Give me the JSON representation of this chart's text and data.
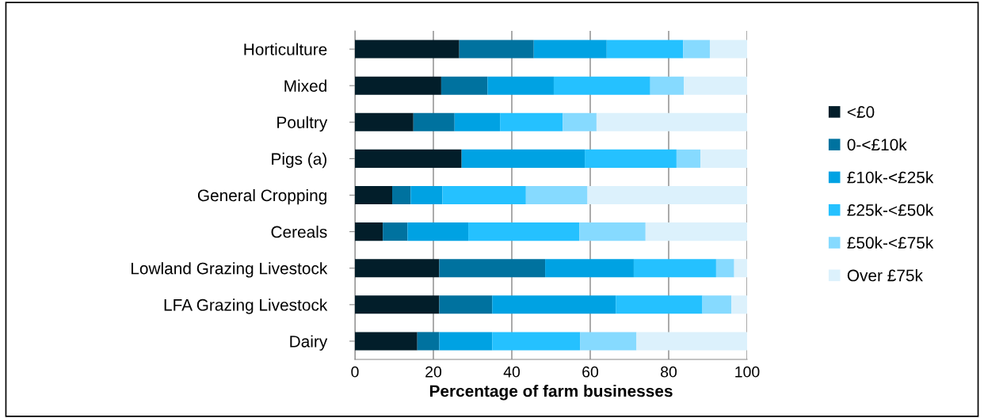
{
  "chart_data": {
    "type": "bar",
    "orientation": "horizontal",
    "stacked": true,
    "xlabel": "Percentage of farm businesses",
    "categories": [
      "Horticulture",
      "Mixed",
      "Poultry",
      "Pigs (a)",
      "General Cropping",
      "Cereals",
      "Lowland Grazing Livestock",
      "LFA Grazing Livestock",
      "Dairy"
    ],
    "series": [
      {
        "name": "<£0",
        "color": "#021e2a",
        "values": [
          26.6,
          22.0,
          14.9,
          27.2,
          9.5,
          7.1,
          21.5,
          21.5,
          15.9
        ]
      },
      {
        "name": "0-<£10k",
        "color": "#00729f",
        "values": [
          19.0,
          11.8,
          10.5,
          0,
          4.7,
          6.3,
          27.0,
          13.5,
          5.6
        ]
      },
      {
        "name": "£10k-<£25k",
        "color": "#00a2e3",
        "values": [
          18.6,
          16.9,
          11.6,
          31.4,
          8.1,
          15.5,
          22.6,
          31.5,
          13.5
        ]
      },
      {
        "name": "£25k-<£50k",
        "color": "#25c1ff",
        "values": [
          19.5,
          24.6,
          16.0,
          23.4,
          21.3,
          28.3,
          21.0,
          22.1,
          22.4
        ]
      },
      {
        "name": "£50k-<£75k",
        "color": "#86daff",
        "values": [
          6.8,
          8.6,
          8.6,
          6.1,
          15.7,
          16.9,
          4.6,
          7.4,
          14.4
        ]
      },
      {
        "name": "Over £75k",
        "color": "#dcf1fc",
        "values": [
          9.5,
          16.1,
          38.4,
          11.9,
          40.7,
          25.9,
          3.3,
          4.0,
          28.2
        ]
      }
    ],
    "xlim": [
      0,
      100
    ],
    "xticks": [
      0,
      20,
      40,
      60,
      80,
      100
    ],
    "grid": "x",
    "legend": "right"
  }
}
